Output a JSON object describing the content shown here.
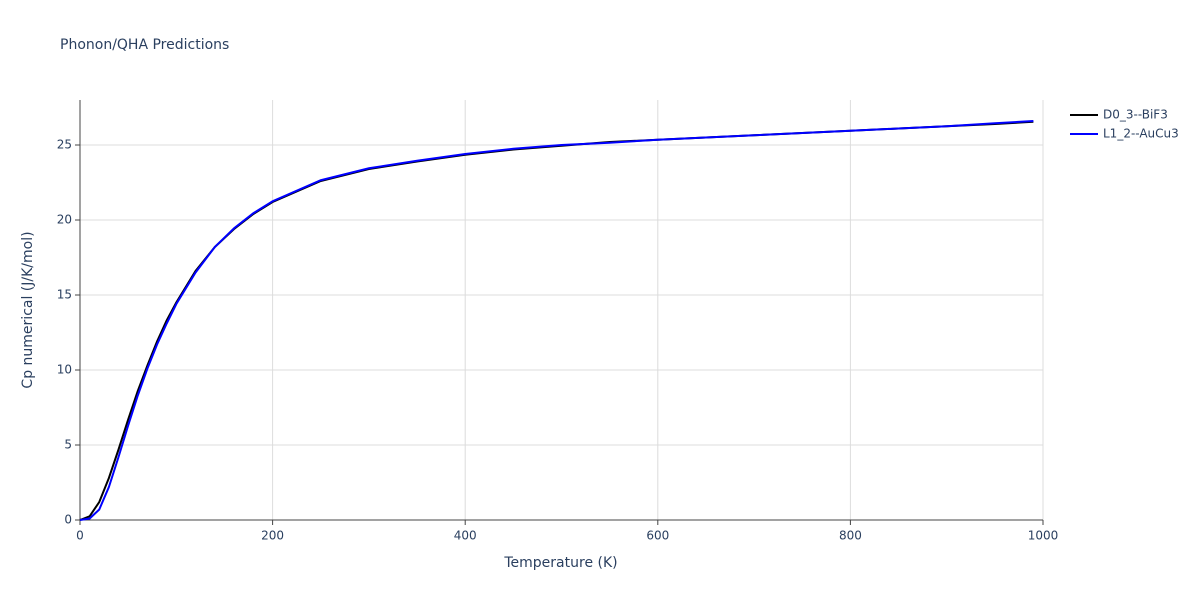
{
  "chart_data": {
    "type": "line",
    "title": "Phonon/QHA Predictions",
    "x_label": "Temperature (K)",
    "y_label": "Cp numerical (J/K/mol)",
    "x": [
      0,
      10,
      20,
      30,
      40,
      50,
      60,
      70,
      80,
      90,
      100,
      120,
      140,
      160,
      180,
      200,
      250,
      300,
      350,
      400,
      450,
      500,
      550,
      600,
      650,
      700,
      750,
      800,
      850,
      900,
      950,
      990
    ],
    "series": [
      {
        "name": "D0_3--BiF3",
        "color": "#000000",
        "values": [
          0,
          0.25,
          1.2,
          2.8,
          4.7,
          6.7,
          8.6,
          10.3,
          11.9,
          13.3,
          14.5,
          16.6,
          18.2,
          19.4,
          20.4,
          21.2,
          22.6,
          23.4,
          23.9,
          24.35,
          24.7,
          24.95,
          25.2,
          25.35,
          25.5,
          25.65,
          25.8,
          25.95,
          26.1,
          26.25,
          26.4,
          26.55
        ]
      },
      {
        "name": "L1_2--AuCu3",
        "color": "#0000ff",
        "values": [
          0,
          0.1,
          0.7,
          2.2,
          4.2,
          6.3,
          8.3,
          10.1,
          11.7,
          13.1,
          14.4,
          16.5,
          18.2,
          19.45,
          20.45,
          21.25,
          22.65,
          23.45,
          23.95,
          24.4,
          24.75,
          25.0,
          25.15,
          25.35,
          25.5,
          25.65,
          25.8,
          25.95,
          26.1,
          26.25,
          26.45,
          26.6
        ]
      }
    ],
    "xlim": [
      0,
      1000
    ],
    "xticks": [
      0,
      200,
      400,
      600,
      800,
      1000
    ],
    "ylim": [
      0,
      28
    ],
    "yticks": [
      0,
      5,
      10,
      15,
      20,
      25
    ],
    "grid": true,
    "legend": "top-right"
  }
}
